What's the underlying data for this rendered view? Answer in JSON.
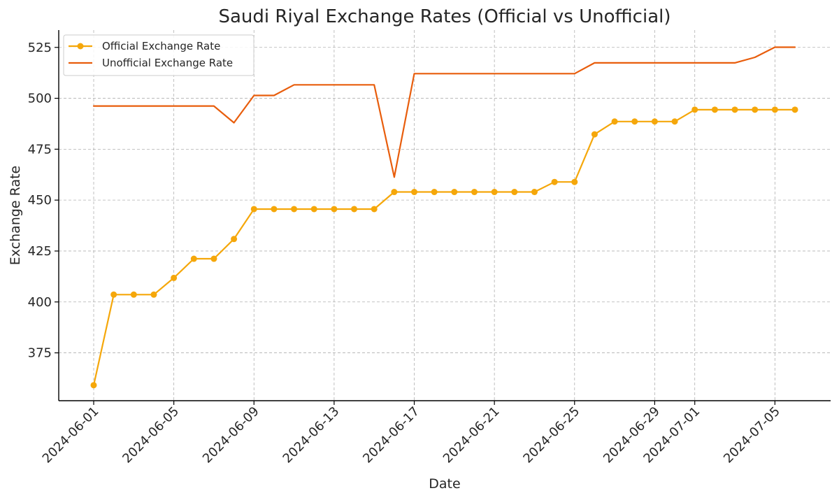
{
  "chart_data": {
    "type": "line",
    "title": "Saudi Riyal Exchange Rates (Official vs Unofficial)",
    "xlabel": "Date",
    "ylabel": "Exchange Rate",
    "x": [
      "2024-06-01",
      "2024-06-02",
      "2024-06-03",
      "2024-06-04",
      "2024-06-05",
      "2024-06-06",
      "2024-06-07",
      "2024-06-08",
      "2024-06-09",
      "2024-06-10",
      "2024-06-11",
      "2024-06-12",
      "2024-06-13",
      "2024-06-14",
      "2024-06-15",
      "2024-06-16",
      "2024-06-17",
      "2024-06-18",
      "2024-06-19",
      "2024-06-20",
      "2024-06-21",
      "2024-06-22",
      "2024-06-23",
      "2024-06-24",
      "2024-06-25",
      "2024-06-26",
      "2024-06-27",
      "2024-06-28",
      "2024-06-29",
      "2024-06-30",
      "2024-07-01",
      "2024-07-02",
      "2024-07-03",
      "2024-07-04",
      "2024-07-05",
      "2024-07-06"
    ],
    "x_ticks": [
      "2024-06-01",
      "2024-06-05",
      "2024-06-09",
      "2024-06-13",
      "2024-06-17",
      "2024-06-21",
      "2024-06-25",
      "2024-06-29",
      "2024-07-01",
      "2024-07-05"
    ],
    "y_ticks": [
      375,
      400,
      425,
      450,
      475,
      500,
      525
    ],
    "ylim": [
      351.5,
      533.5
    ],
    "grid": true,
    "legend_position": "top-left",
    "series": [
      {
        "name": "Official Exchange Rate",
        "color": "#f5a70a",
        "marker": "circle",
        "values": [
          359.1,
          403.6,
          403.6,
          403.6,
          411.8,
          421.2,
          421.2,
          430.9,
          445.6,
          445.6,
          445.6,
          445.6,
          445.6,
          445.6,
          445.6,
          454.0,
          454.0,
          454.0,
          454.0,
          454.0,
          454.0,
          454.0,
          454.0,
          458.9,
          458.9,
          482.3,
          488.6,
          488.6,
          488.6,
          488.6,
          494.4,
          494.4,
          494.4,
          494.4,
          494.4,
          494.4
        ]
      },
      {
        "name": "Unofficial Exchange Rate",
        "color": "#e85d0c",
        "marker": "none",
        "values": [
          496.2,
          496.2,
          496.2,
          496.2,
          496.2,
          496.2,
          496.2,
          488.0,
          501.4,
          501.4,
          506.6,
          506.6,
          506.6,
          506.6,
          506.6,
          461.3,
          512.1,
          512.1,
          512.1,
          512.1,
          512.1,
          512.1,
          512.1,
          512.1,
          512.1,
          517.4,
          517.4,
          517.4,
          517.4,
          517.4,
          517.4,
          517.4,
          517.4,
          520.1,
          525.1,
          525.1
        ]
      }
    ]
  }
}
